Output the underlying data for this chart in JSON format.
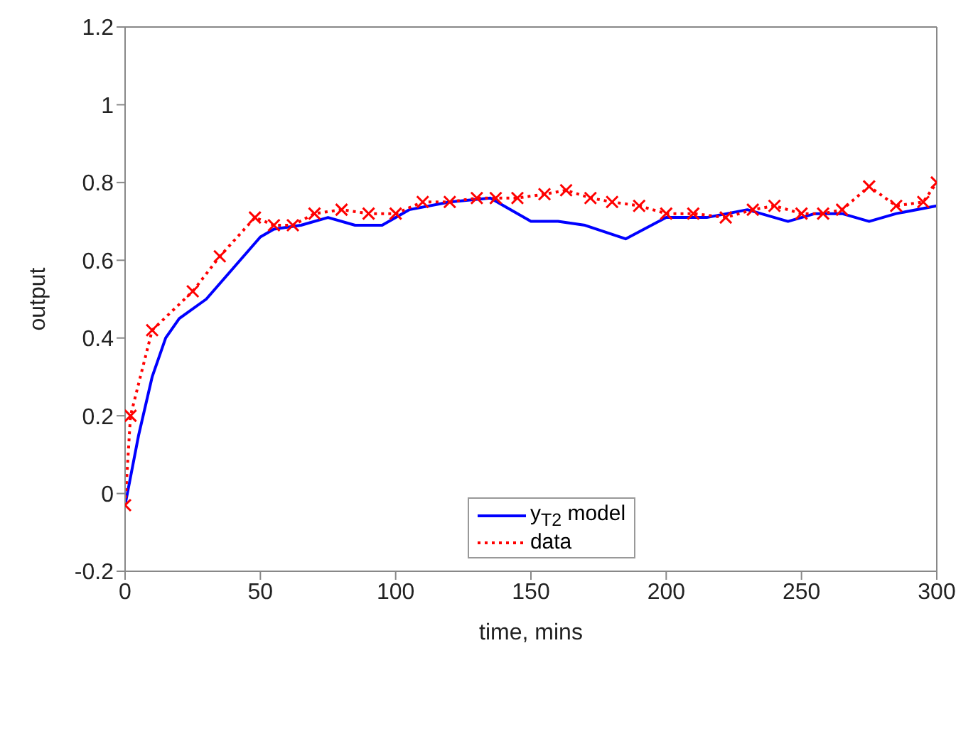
{
  "chart_data": {
    "type": "line",
    "xlabel": "time, mins",
    "ylabel": "output",
    "xlim": [
      0,
      300
    ],
    "xticks": [
      0,
      50,
      100,
      150,
      200,
      250,
      300
    ],
    "ylim": [
      -0.2,
      1.2
    ],
    "yticks": [
      -0.2,
      0,
      0.2,
      0.4,
      0.6,
      0.8,
      1,
      1.2
    ],
    "legend": "bottom",
    "series": [
      {
        "name": "y$_{T2}$ model",
        "color": "#0000ff",
        "line_style": "solid",
        "marker": "none",
        "x": [
          0,
          5,
          10,
          15,
          20,
          30,
          40,
          50,
          55,
          65,
          75,
          85,
          95,
          105,
          120,
          135,
          140,
          150,
          160,
          170,
          185,
          200,
          215,
          230,
          245,
          255,
          265,
          275,
          285,
          300
        ],
        "values": [
          -0.03,
          0.15,
          0.3,
          0.4,
          0.45,
          0.5,
          0.58,
          0.66,
          0.68,
          0.69,
          0.71,
          0.69,
          0.69,
          0.73,
          0.75,
          0.76,
          0.74,
          0.7,
          0.7,
          0.69,
          0.655,
          0.71,
          0.71,
          0.73,
          0.7,
          0.72,
          0.72,
          0.7,
          0.72,
          0.74
        ]
      },
      {
        "name": "data",
        "color": "#ff0000",
        "line_style": "dotted",
        "marker": "cross",
        "x": [
          0,
          2,
          10,
          25,
          35,
          48,
          55,
          62,
          70,
          80,
          90,
          100,
          110,
          120,
          130,
          137,
          145,
          155,
          163,
          172,
          180,
          190,
          200,
          210,
          222,
          232,
          240,
          250,
          258,
          265,
          275,
          285,
          295,
          300
        ],
        "values": [
          -0.03,
          0.2,
          0.42,
          0.52,
          0.61,
          0.71,
          0.69,
          0.69,
          0.72,
          0.73,
          0.72,
          0.72,
          0.75,
          0.75,
          0.76,
          0.76,
          0.76,
          0.77,
          0.78,
          0.76,
          0.75,
          0.74,
          0.72,
          0.72,
          0.71,
          0.73,
          0.74,
          0.72,
          0.72,
          0.73,
          0.79,
          0.74,
          0.75,
          0.8
        ]
      }
    ]
  }
}
